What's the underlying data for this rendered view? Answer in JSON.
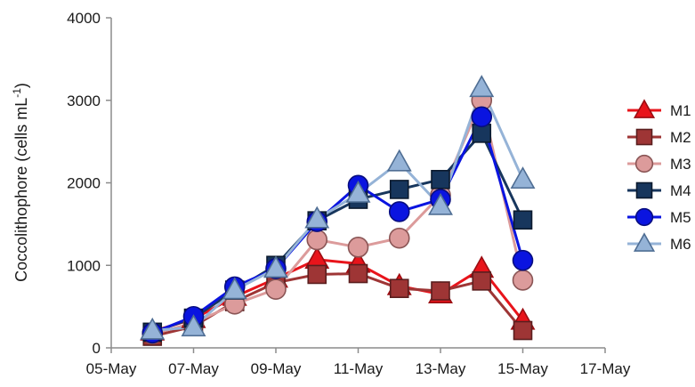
{
  "chart_data": {
    "type": "line",
    "ylabel": "Coccolithophore (cells mL",
    "ylabel_sup": "-1",
    "ylabel_close": ")",
    "xlabel": "",
    "ylim": [
      0,
      4000
    ],
    "yticks": [
      0,
      1000,
      2000,
      3000,
      4000
    ],
    "xlim_days": [
      "05-May",
      "17-May"
    ],
    "xticks": [
      "05-May",
      "07-May",
      "09-May",
      "11-May",
      "13-May",
      "15-May",
      "17-May"
    ],
    "grid": false,
    "legend_position": "right",
    "x": [
      "06-May",
      "07-May",
      "08-May",
      "09-May",
      "10-May",
      "11-May",
      "12-May",
      "13-May",
      "14-May",
      "15-May"
    ],
    "series": [
      {
        "name": "M1",
        "marker": "triangle",
        "color": "#e8141b",
        "edge": "#9c0d12",
        "line": "#e8141b",
        "values": [
          200,
          350,
          620,
          840,
          1070,
          1020,
          750,
          650,
          960,
          330
        ]
      },
      {
        "name": "M2",
        "marker": "square",
        "color": "#9e3535",
        "edge": "#5a1e1e",
        "line": "#9e3535",
        "values": [
          140,
          260,
          560,
          790,
          890,
          900,
          720,
          690,
          810,
          210
        ]
      },
      {
        "name": "M3",
        "marker": "circle",
        "color": "#dc9b9b",
        "edge": "#8a5555",
        "line": "#dc9b9b",
        "values": [
          170,
          300,
          530,
          710,
          1310,
          1220,
          1330,
          1850,
          3000,
          820
        ]
      },
      {
        "name": "M4",
        "marker": "square",
        "color": "#17365d",
        "edge": "#0b1a2e",
        "line": "#17365d",
        "values": [
          190,
          360,
          700,
          1000,
          1540,
          1800,
          1920,
          2040,
          2600,
          1550
        ]
      },
      {
        "name": "M5",
        "marker": "circle",
        "color": "#0a14e0",
        "edge": "#070d80",
        "line": "#0a14e0",
        "values": [
          180,
          380,
          740,
          960,
          1530,
          1970,
          1650,
          1800,
          2800,
          1060
        ]
      },
      {
        "name": "M6",
        "marker": "triangle",
        "color": "#95b3d7",
        "edge": "#4f6e94",
        "line": "#95b3d7",
        "values": [
          210,
          250,
          700,
          960,
          1560,
          1870,
          2250,
          1720,
          3150,
          2040
        ]
      }
    ]
  }
}
